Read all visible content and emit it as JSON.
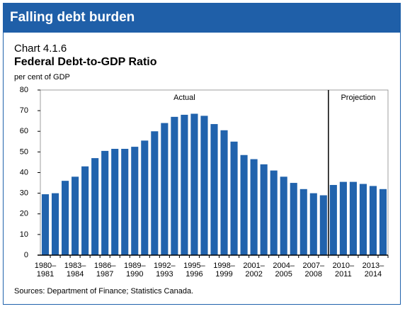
{
  "header": "Falling debt burden",
  "chart_data": {
    "type": "bar",
    "subtitle": "Chart 4.1.6",
    "title": "Federal Debt-to-GDP Ratio",
    "ylabel": "per cent of GDP",
    "source": "Sources: Department of Finance; Statistics Canada.",
    "categories": [
      "1980–1981",
      null,
      null,
      "1983–1984",
      null,
      null,
      "1986–1987",
      null,
      null,
      "1989–1990",
      null,
      null,
      "1992–1993",
      null,
      null,
      "1995–1996",
      null,
      null,
      "1998–1999",
      null,
      null,
      "2001–2002",
      null,
      null,
      "2004–2005",
      null,
      null,
      "2007–2008",
      null,
      null,
      "2010–2011",
      null,
      null,
      "2013–2014",
      null
    ],
    "series": [
      {
        "name": "Actual",
        "color": "#2163ad",
        "values": [
          29.5,
          30,
          36,
          38,
          43,
          47,
          50.5,
          51.5,
          51.5,
          52.5,
          55.5,
          60,
          64,
          67,
          68,
          68.5,
          67.5,
          63.5,
          60.5,
          55,
          48.5,
          46.5,
          44,
          41,
          38,
          35,
          32,
          30,
          29,
          null,
          null,
          null,
          null,
          null,
          null
        ]
      },
      {
        "name": "Projection",
        "color": "#2163ad",
        "values": [
          null,
          null,
          null,
          null,
          null,
          null,
          null,
          null,
          null,
          null,
          null,
          null,
          null,
          null,
          null,
          null,
          null,
          null,
          null,
          null,
          null,
          null,
          null,
          null,
          null,
          null,
          null,
          null,
          null,
          34,
          35.5,
          35.5,
          34.5,
          33.5,
          32
        ]
      }
    ],
    "ylim": [
      0,
      80
    ],
    "yticks": [
      0,
      10,
      20,
      30,
      40,
      50,
      60,
      70,
      80
    ]
  }
}
